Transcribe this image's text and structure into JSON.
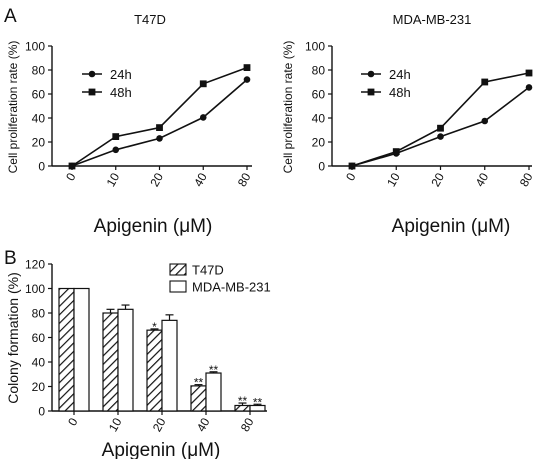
{
  "panel_labels": {
    "a": "A",
    "b": "B"
  },
  "chart_data": [
    {
      "type": "line",
      "title": "T47D",
      "xlabel": "Apigenin (μM)",
      "ylabel": "Cell proliferation rate (%)",
      "categories": [
        "0",
        "10",
        "20",
        "40",
        "80"
      ],
      "ylim": [
        0,
        100
      ],
      "yticks": [
        0,
        20,
        40,
        60,
        80,
        100
      ],
      "legend": "top-left",
      "grid": false,
      "series": [
        {
          "name": "24h",
          "marker": "circle",
          "values": [
            0,
            13.5,
            23,
            40.5,
            72
          ]
        },
        {
          "name": "48h",
          "marker": "square",
          "values": [
            0,
            24.5,
            32,
            68.5,
            82
          ]
        }
      ]
    },
    {
      "type": "line",
      "title": "MDA-MB-231",
      "xlabel": "Apigenin (μM)",
      "ylabel": "Cell proliferation rate (%)",
      "categories": [
        "0",
        "10",
        "20",
        "40",
        "80"
      ],
      "ylim": [
        0,
        100
      ],
      "yticks": [
        0,
        20,
        40,
        60,
        80,
        100
      ],
      "legend": "top-left",
      "grid": false,
      "series": [
        {
          "name": "24h",
          "marker": "circle",
          "values": [
            0,
            10.5,
            24.5,
            37.5,
            65.5
          ]
        },
        {
          "name": "48h",
          "marker": "square",
          "values": [
            0,
            12,
            31.5,
            70,
            77.5
          ]
        }
      ]
    },
    {
      "type": "bar",
      "title": "",
      "xlabel": "Apigenin (μM)",
      "ylabel": "Colony formation (%)",
      "categories": [
        "0",
        "10",
        "20",
        "40",
        "80"
      ],
      "ylim": [
        0,
        120
      ],
      "yticks": [
        0,
        20,
        40,
        60,
        80,
        100,
        120
      ],
      "legend": "top-center",
      "grid": false,
      "series": [
        {
          "name": "T47D",
          "fill": "hatched",
          "values": [
            100,
            80,
            66,
            20.5,
            4.5
          ],
          "errors": [
            0,
            3,
            1,
            1,
            2
          ],
          "significance": [
            "",
            "",
            "*",
            "**",
            "**"
          ]
        },
        {
          "name": "MDA-MB-231",
          "fill": "white",
          "values": [
            100,
            83,
            74,
            31,
            4.5
          ],
          "errors": [
            0,
            3.5,
            4.5,
            1,
            1
          ],
          "significance": [
            "",
            "",
            "",
            "**",
            "**"
          ]
        }
      ]
    }
  ]
}
